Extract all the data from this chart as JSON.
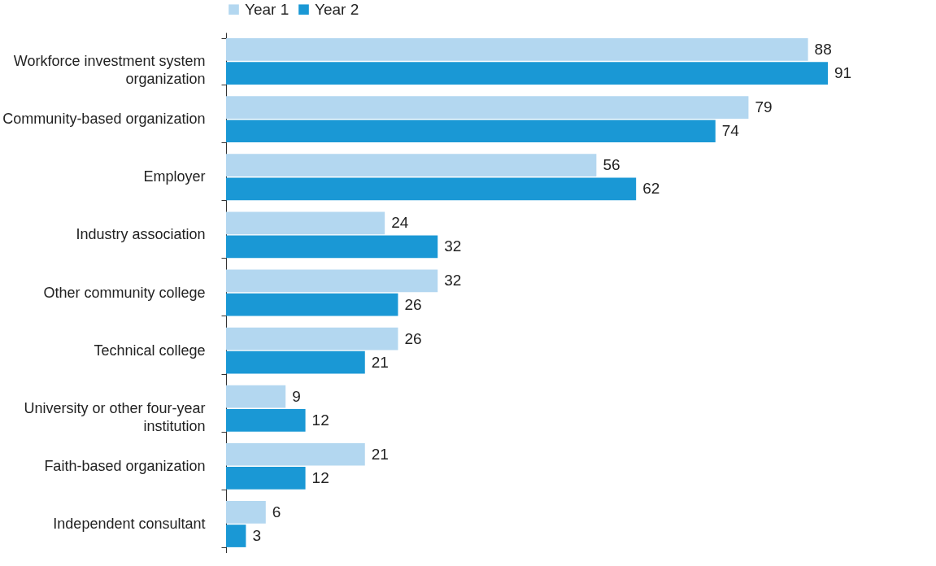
{
  "chart_data": {
    "type": "bar",
    "orientation": "horizontal",
    "categories": [
      "Workforce investment system organization",
      "Community-based organization",
      "Employer",
      "Industry association",
      "Other community college",
      "Technical college",
      "University or other four-year institution",
      "Faith-based organization",
      "Independent consultant"
    ],
    "series": [
      {
        "name": "Year 1",
        "color": "#b3d7f0",
        "values": [
          88,
          79,
          56,
          24,
          32,
          26,
          9,
          21,
          6
        ]
      },
      {
        "name": "Year 2",
        "color": "#1a98d5",
        "values": [
          91,
          74,
          62,
          32,
          26,
          21,
          12,
          12,
          3
        ]
      }
    ],
    "data_labels": true,
    "legend": "top"
  }
}
